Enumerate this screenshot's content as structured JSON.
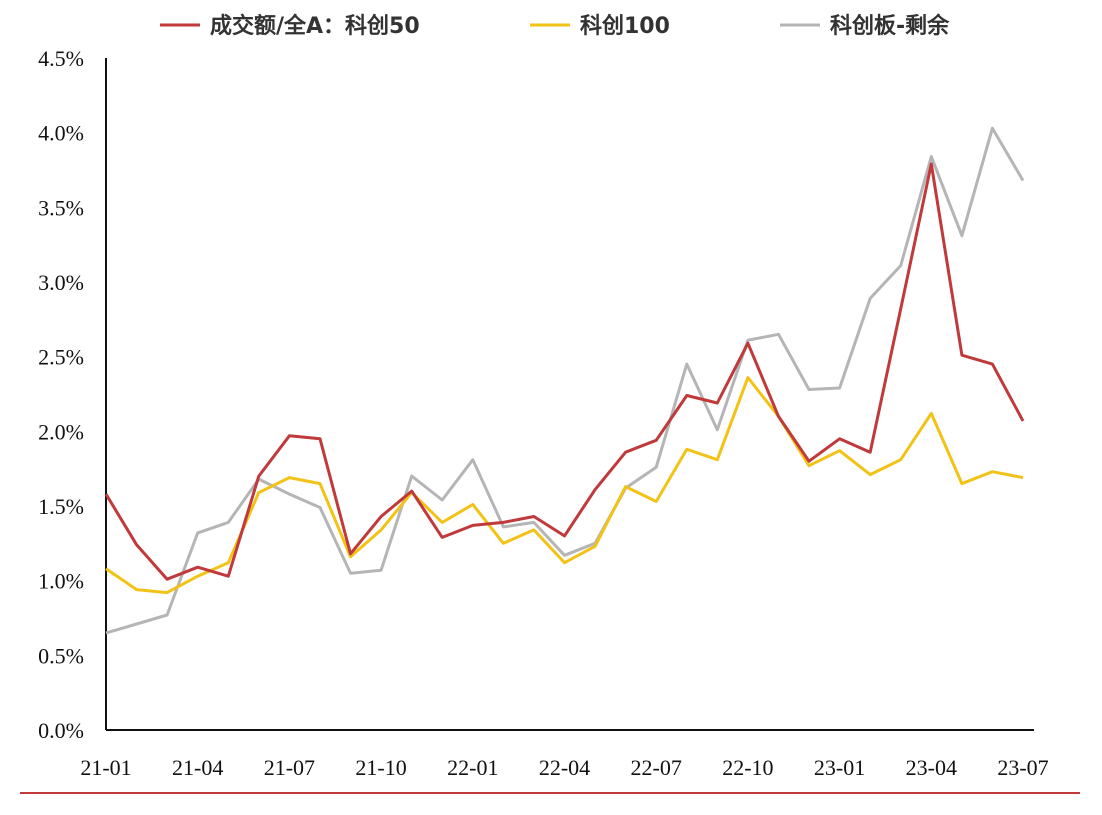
{
  "chart_data": {
    "type": "line",
    "x": [
      "21-01",
      "21-02",
      "21-03",
      "21-04",
      "21-05",
      "21-06",
      "21-07",
      "21-08",
      "21-09",
      "21-10",
      "21-11",
      "21-12",
      "22-01",
      "22-02",
      "22-03",
      "22-04",
      "22-05",
      "22-06",
      "22-07",
      "22-08",
      "22-09",
      "22-10",
      "22-11",
      "22-12",
      "23-01",
      "23-02",
      "23-03",
      "23-04",
      "23-05",
      "23-06",
      "23-07"
    ],
    "x_tick_labels": [
      "21-01",
      "21-04",
      "21-07",
      "21-10",
      "22-01",
      "22-04",
      "22-07",
      "22-10",
      "23-01",
      "23-04",
      "23-07"
    ],
    "y_tick_labels": [
      "0.0%",
      "0.5%",
      "1.0%",
      "1.5%",
      "2.0%",
      "2.5%",
      "3.0%",
      "3.5%",
      "4.0%",
      "4.5%"
    ],
    "ylim": [
      0,
      4.5
    ],
    "y_unit": "%",
    "grid": false,
    "legend_position": "top",
    "series": [
      {
        "name": "成交额/全A：科创50",
        "color": "#C0393B",
        "values": [
          1.58,
          1.24,
          1.01,
          1.09,
          1.03,
          1.7,
          1.97,
          1.95,
          1.18,
          1.43,
          1.6,
          1.29,
          1.37,
          1.39,
          1.43,
          1.3,
          1.61,
          1.86,
          1.94,
          2.24,
          2.19,
          2.59,
          2.1,
          1.8,
          1.95,
          1.86,
          2.82,
          3.79,
          2.51,
          2.45,
          2.07
        ]
      },
      {
        "name": "科创100",
        "color": "#F2C316",
        "values": [
          1.08,
          0.94,
          0.92,
          1.03,
          1.12,
          1.59,
          1.69,
          1.65,
          1.16,
          1.34,
          1.59,
          1.39,
          1.51,
          1.25,
          1.34,
          1.12,
          1.23,
          1.63,
          1.53,
          1.88,
          1.81,
          2.36,
          2.1,
          1.77,
          1.87,
          1.71,
          1.81,
          2.12,
          1.65,
          1.73,
          1.69
        ]
      },
      {
        "name": "科创板-剩余",
        "color": "#B5B5B5",
        "values": [
          0.65,
          0.71,
          0.77,
          1.32,
          1.39,
          1.68,
          1.58,
          1.49,
          1.05,
          1.07,
          1.7,
          1.54,
          1.81,
          1.36,
          1.39,
          1.17,
          1.25,
          1.62,
          1.76,
          2.45,
          2.01,
          2.61,
          2.65,
          2.28,
          2.29,
          2.89,
          3.11,
          3.84,
          3.31,
          4.03,
          3.68
        ]
      }
    ]
  }
}
